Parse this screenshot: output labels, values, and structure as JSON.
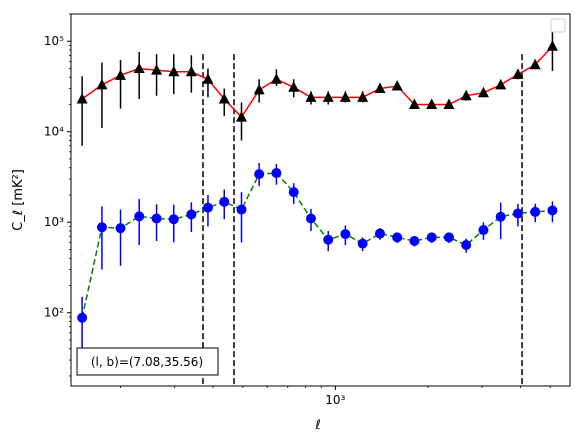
{
  "chart_data": {
    "type": "scatter",
    "title": "",
    "xlabel": "ℓ",
    "ylabel": "C_ℓ  [mK²]",
    "xscale": "log",
    "yscale": "log",
    "xlim": [
      138,
      5800
    ],
    "ylim": [
      15.5,
      200000
    ],
    "x_ticks": [
      {
        "value": 1000,
        "label": "10³"
      }
    ],
    "y_ticks": [
      {
        "value": 100,
        "label": "10²"
      },
      {
        "value": 1000,
        "label": "10³"
      },
      {
        "value": 10000,
        "label": "10⁴"
      },
      {
        "value": 100000,
        "label": "10⁵"
      }
    ],
    "grid": false,
    "legend": {
      "position": "top-right",
      "entries": []
    },
    "annotation": "(l, b)=(7.08,35.56)",
    "vlines": [
      {
        "x": 371,
        "y_range": [
          15.5,
          72000
        ],
        "style": "dashed",
        "color": "#000000"
      },
      {
        "x": 468,
        "y_range": [
          15.5,
          72000
        ],
        "style": "dashed",
        "color": "#000000"
      },
      {
        "x": 4050,
        "y_range": [
          15.5,
          72000
        ],
        "style": "dashed",
        "color": "#000000"
      }
    ],
    "series": [
      {
        "marker": "triangle",
        "color": "#000000",
        "line_color": "#ff0000",
        "line_style": "solid",
        "x": [
          150,
          174,
          200,
          230,
          262,
          298,
          340,
          385,
          435,
          495,
          565,
          643,
          732,
          833,
          948,
          1078,
          1227,
          1397,
          1589,
          1808,
          2058,
          2342,
          2665,
          3033,
          3451,
          3927,
          4469,
          5085
        ],
        "y": [
          23000,
          33000,
          42000,
          50000,
          48000,
          46000,
          46000,
          38000,
          23000,
          14500,
          29000,
          38000,
          31000,
          24000,
          24000,
          24000,
          24000,
          30000,
          32000,
          20000,
          20000,
          20000,
          25000,
          27000,
          33000,
          43000,
          55000,
          88000
        ],
        "y_low": [
          7000,
          11000,
          18000,
          23000,
          25000,
          26000,
          27000,
          24000,
          15000,
          8000,
          21000,
          32000,
          24000,
          20000,
          20000,
          21000,
          21000,
          27000,
          29000,
          18000,
          18000,
          18000,
          22000,
          24000,
          30000,
          38000,
          50000,
          47000
        ],
        "y_high": [
          41000,
          58000,
          62000,
          76000,
          72000,
          72000,
          70000,
          50000,
          30000,
          21000,
          38000,
          49000,
          38000,
          28000,
          28000,
          28000,
          28000,
          34000,
          35000,
          22000,
          22000,
          22000,
          28000,
          30000,
          36000,
          48000,
          60000,
          150000
        ]
      },
      {
        "marker": "circle",
        "color": "#0000ff",
        "line_color": "#008000",
        "line_style": "dashed",
        "x": [
          150,
          174,
          200,
          230,
          262,
          298,
          340,
          385,
          435,
          495,
          565,
          643,
          732,
          833,
          948,
          1078,
          1227,
          1397,
          1589,
          1808,
          2058,
          2342,
          2665,
          3033,
          3451,
          3927,
          4469,
          5085
        ],
        "y": [
          88,
          880,
          860,
          1160,
          1100,
          1080,
          1220,
          1450,
          1680,
          1380,
          3400,
          3500,
          2150,
          1100,
          640,
          740,
          580,
          750,
          680,
          620,
          680,
          680,
          560,
          820,
          1150,
          1250,
          1300,
          1350
        ],
        "y_low": [
          30,
          300,
          330,
          560,
          620,
          600,
          780,
          900,
          1080,
          600,
          2500,
          2600,
          1600,
          800,
          480,
          560,
          480,
          640,
          590,
          540,
          590,
          590,
          460,
          640,
          650,
          900,
          1000,
          1000
        ],
        "y_high": [
          150,
          1500,
          1380,
          1800,
          1580,
          1560,
          1660,
          2000,
          2300,
          2150,
          4500,
          4400,
          2700,
          1400,
          800,
          920,
          680,
          860,
          770,
          700,
          770,
          770,
          660,
          1000,
          1650,
          1600,
          1600,
          1700
        ]
      }
    ]
  }
}
